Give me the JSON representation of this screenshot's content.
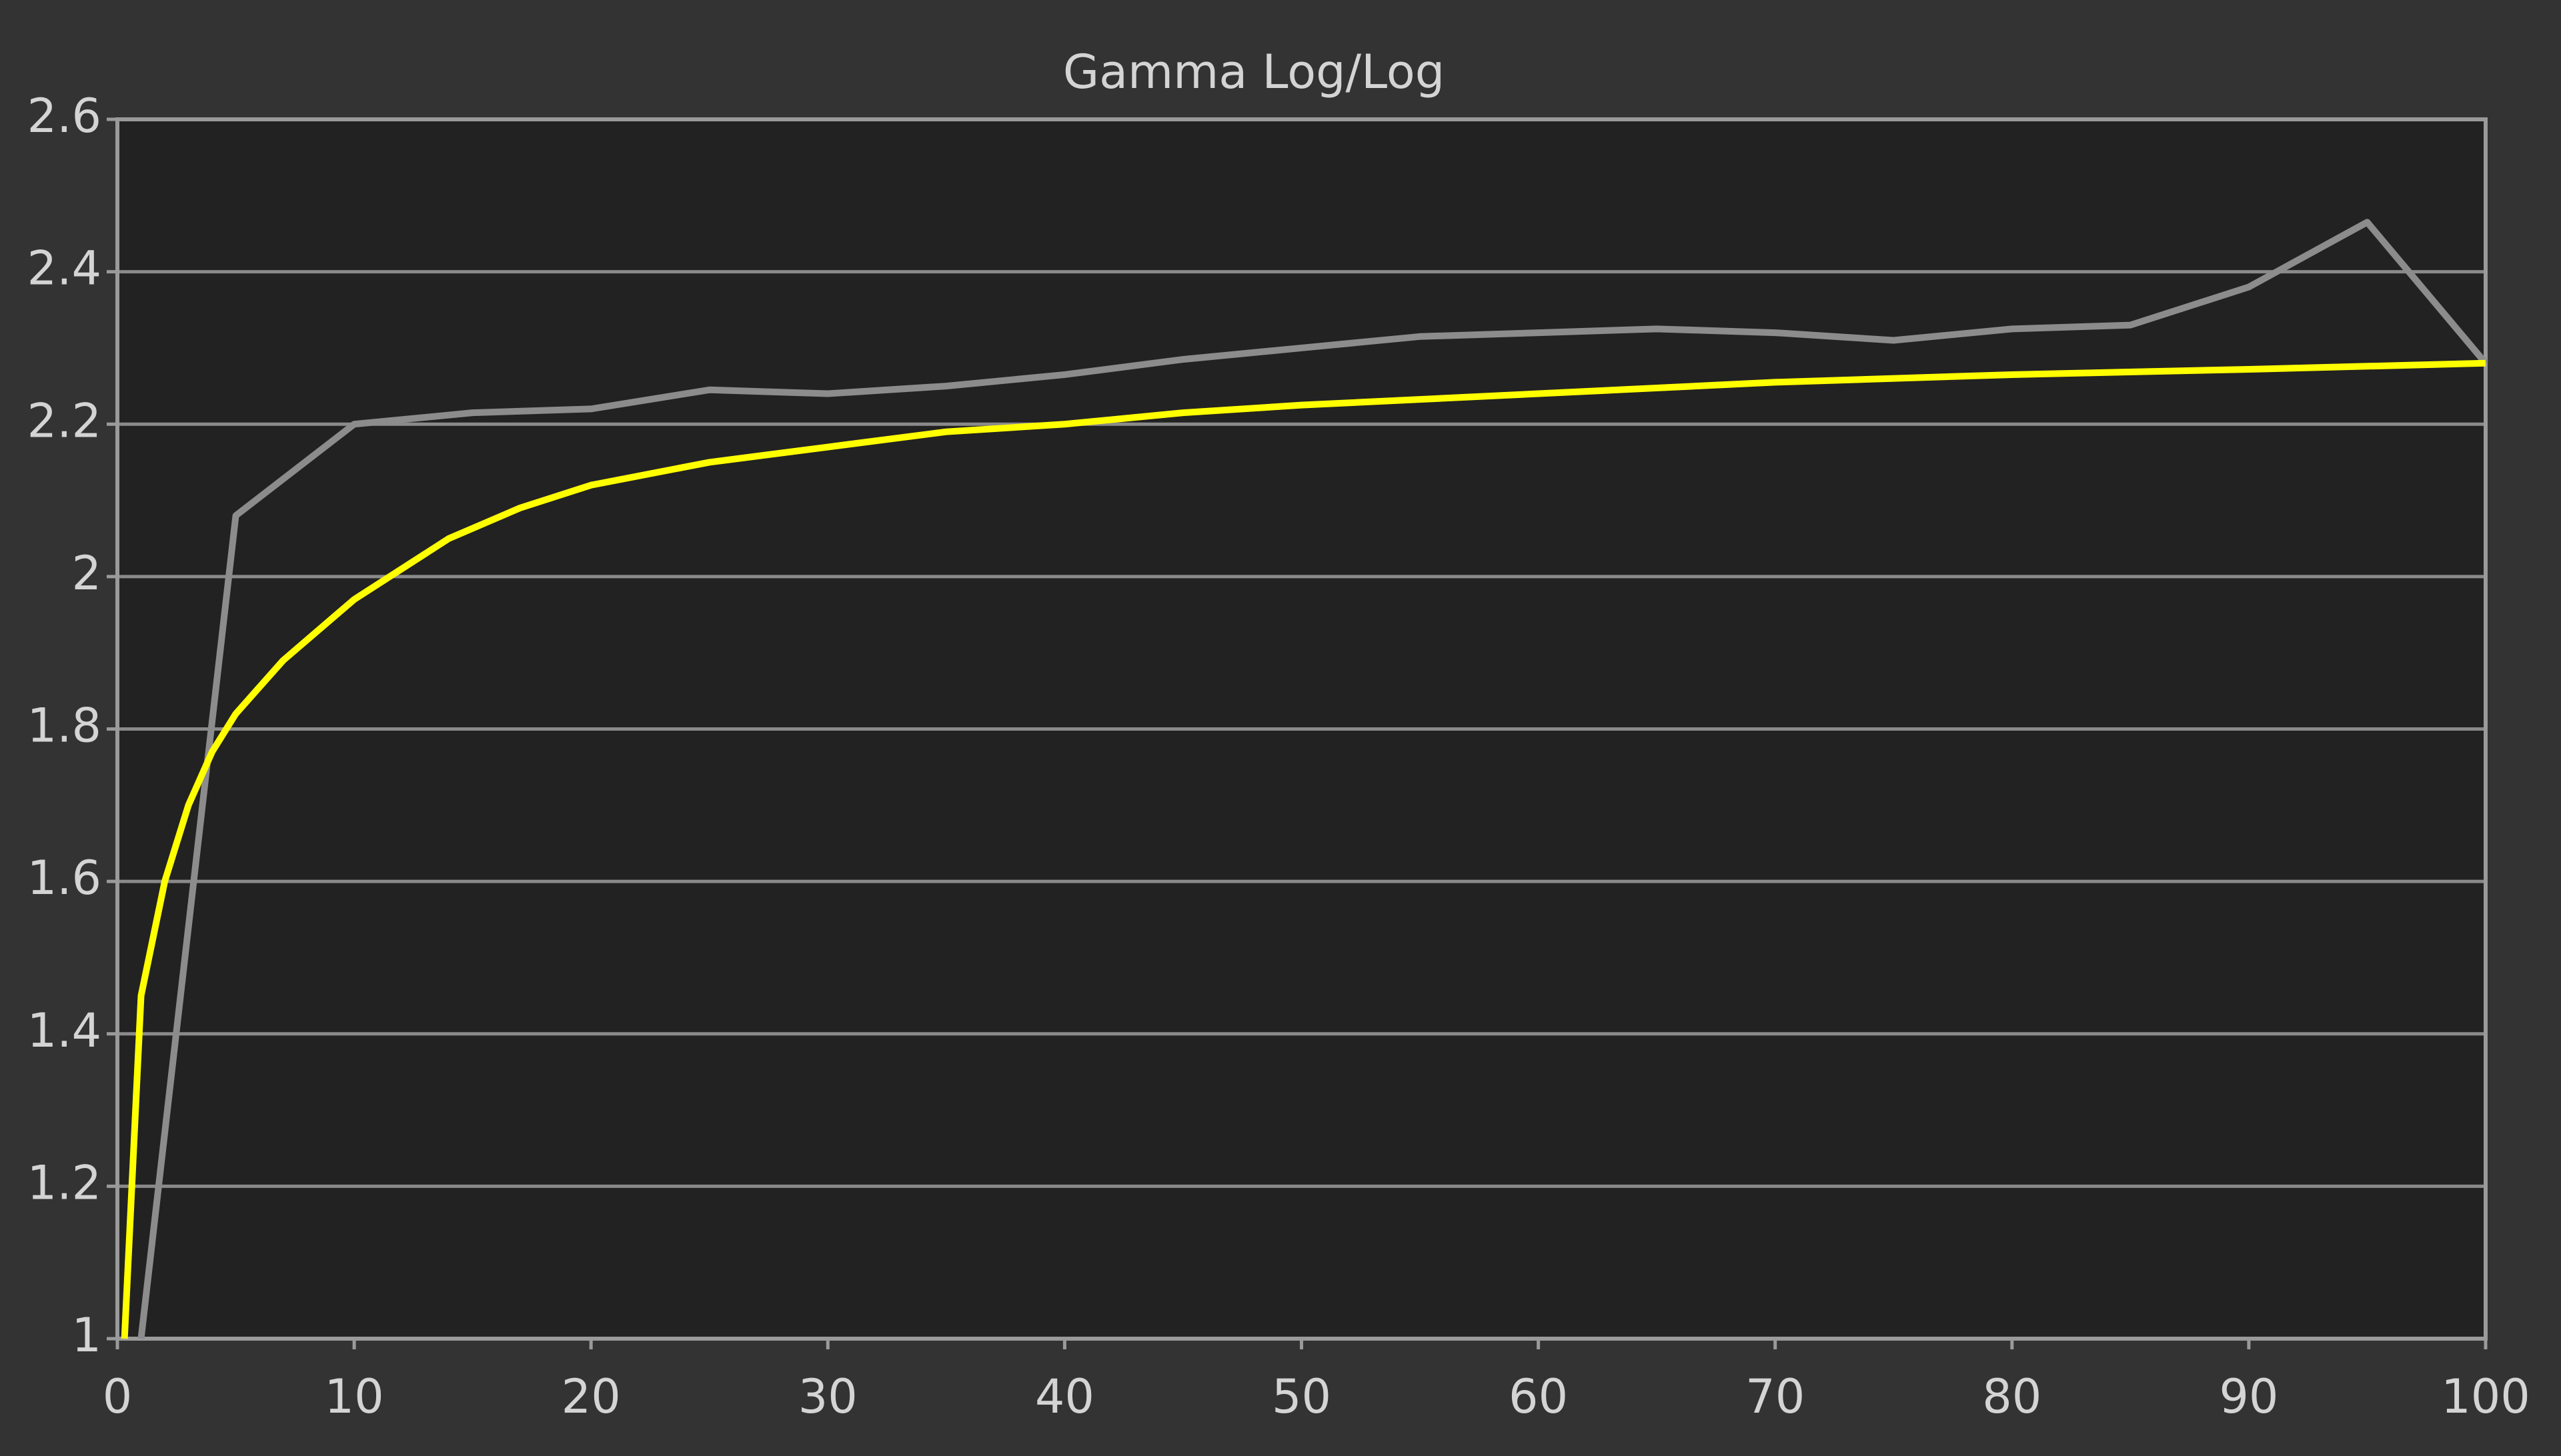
{
  "chart_data": {
    "type": "line",
    "title": "Gamma Log/Log",
    "xlim": [
      0,
      100
    ],
    "xticks": [
      0,
      10,
      20,
      30,
      40,
      50,
      60,
      70,
      80,
      90,
      100
    ],
    "ylim": [
      1,
      2.6
    ],
    "yticks": [
      1,
      1.2,
      1.4,
      1.6,
      1.8,
      2,
      2.2,
      2.4,
      2.6
    ],
    "grid": true,
    "series": [
      {
        "color": "#8c8c8c",
        "x": [
          1,
          5,
          10,
          15,
          20,
          25,
          30,
          35,
          40,
          45,
          50,
          55,
          60,
          65,
          70,
          75,
          80,
          85,
          90,
          95,
          100
        ],
        "values": [
          1.0,
          2.08,
          2.2,
          2.215,
          2.22,
          2.245,
          2.24,
          2.25,
          2.265,
          2.285,
          2.3,
          2.315,
          2.32,
          2.325,
          2.32,
          2.31,
          2.325,
          2.33,
          2.38,
          2.465,
          2.28
        ]
      },
      {
        "color": "#ffff00",
        "x": [
          0.3,
          1,
          2,
          3,
          4,
          5,
          7,
          10,
          14,
          17,
          20,
          25,
          30,
          35,
          40,
          45,
          50,
          60,
          70,
          80,
          90,
          100
        ],
        "values": [
          1.0,
          1.45,
          1.6,
          1.7,
          1.77,
          1.82,
          1.89,
          1.97,
          2.05,
          2.09,
          2.12,
          2.15,
          2.17,
          2.19,
          2.2,
          2.215,
          2.225,
          2.24,
          2.255,
          2.265,
          2.272,
          2.28
        ]
      }
    ]
  }
}
